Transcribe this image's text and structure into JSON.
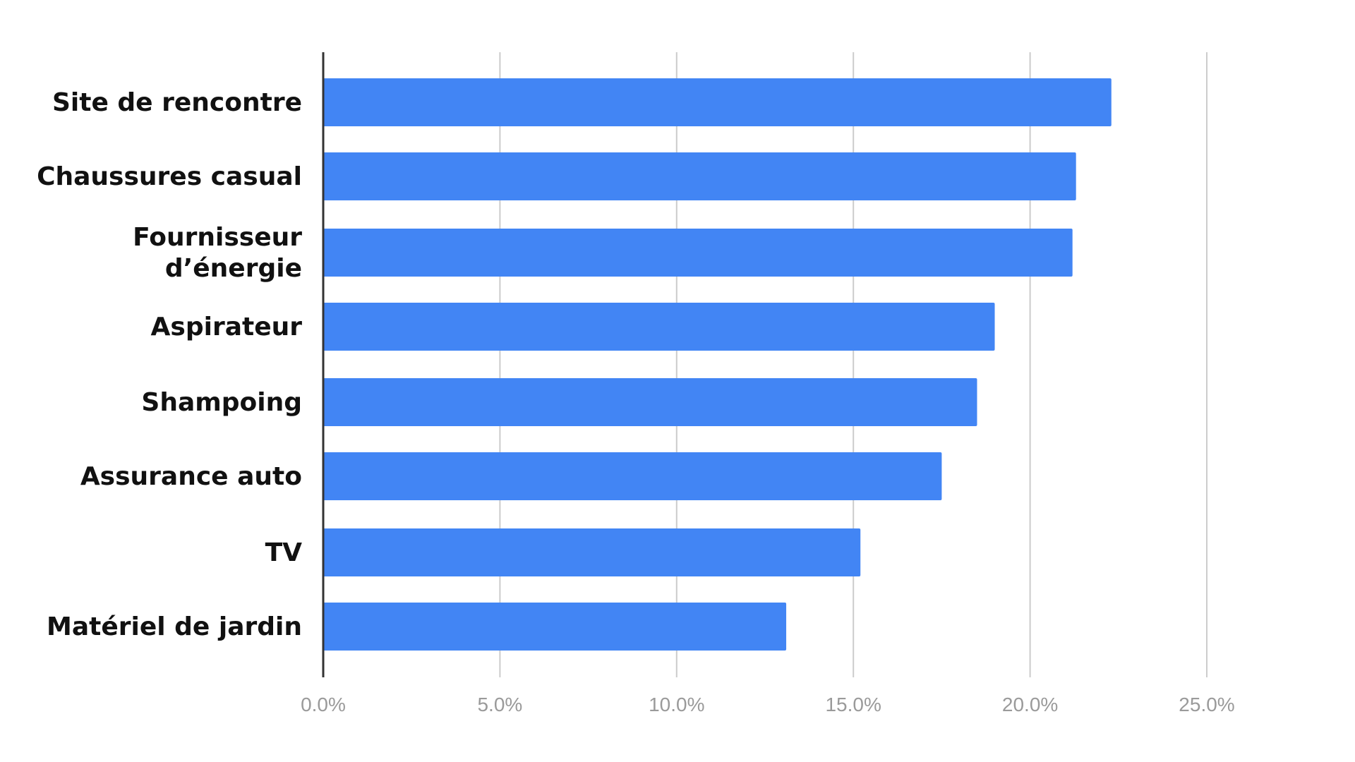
{
  "chart_data": {
    "type": "bar",
    "orientation": "horizontal",
    "categories": [
      "Site de rencontre",
      "Chaussures casual",
      "Fournisseur d’énergie",
      "Aspirateur",
      "Shampoing",
      "Assurance auto",
      "TV",
      "Matériel de jardin"
    ],
    "values": [
      22.3,
      21.3,
      21.2,
      19.0,
      18.5,
      17.5,
      15.2,
      13.1
    ],
    "xlim": [
      0,
      25
    ],
    "x_ticks": [
      0,
      5,
      10,
      15,
      20,
      25
    ],
    "x_tick_labels": [
      "0.0%",
      "5.0%",
      "10.0%",
      "15.0%",
      "20.0%",
      "25.0%"
    ],
    "title": "",
    "xlabel": "",
    "ylabel": "",
    "grid": "vertical",
    "legend": "none",
    "bar_color": "#4285F4"
  }
}
